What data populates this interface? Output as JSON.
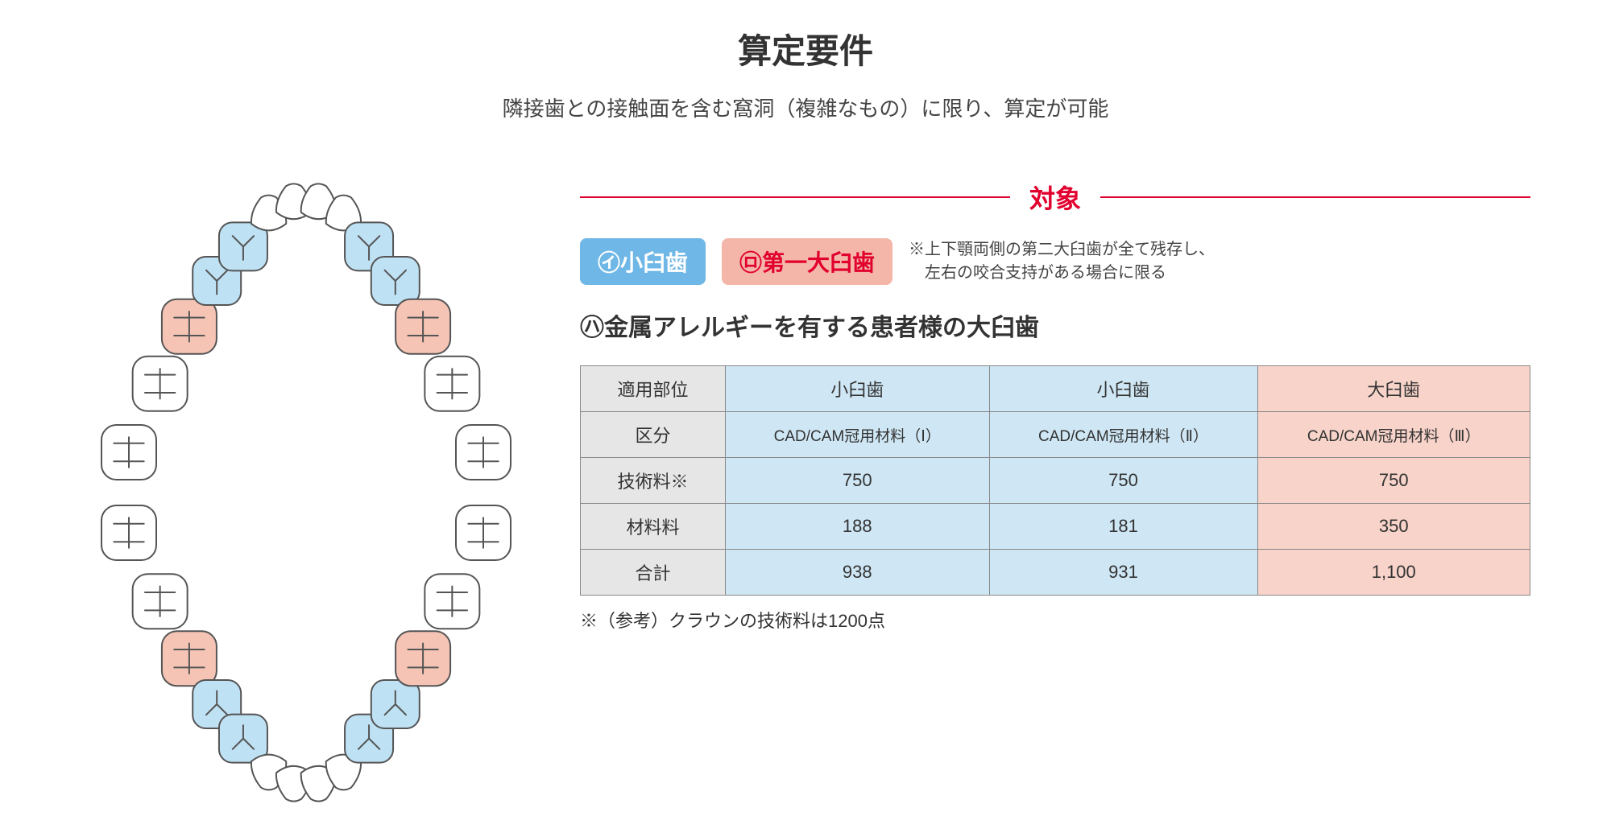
{
  "title": "算定要件",
  "subtitle": "隣接歯との接触面を含む窩洞（複雑なもの）に限り、算定が可能",
  "target": {
    "label": "対象",
    "line_color": "#e2002e",
    "badges": [
      {
        "text": "㋑小臼歯",
        "bg": "#6fb7e6",
        "fg": "#ffffff"
      },
      {
        "text": "㋺第一大臼歯",
        "bg": "#f3b6a8",
        "fg": "#e2002e"
      }
    ],
    "badge_note": "※上下顎両側の第二大臼歯が全て残存し、\n　左右の咬合支持がある場合に限る",
    "allergy": "㋩金属アレルギーを有する患者様の大臼歯"
  },
  "table": {
    "row_headers": [
      "適用部位",
      "区分",
      "技術料※",
      "材料料",
      "合計"
    ],
    "columns": [
      {
        "site": "小臼歯",
        "category": "CAD/CAM冠用材料（Ⅰ）",
        "tech": "750",
        "material": "188",
        "total": "938",
        "color": "blue"
      },
      {
        "site": "小臼歯",
        "category": "CAD/CAM冠用材料（Ⅱ）",
        "tech": "750",
        "material": "181",
        "total": "931",
        "color": "blue"
      },
      {
        "site": "大臼歯",
        "category": "CAD/CAM冠用材料（Ⅲ）",
        "tech": "750",
        "material": "350",
        "total": "1,100",
        "color": "pink"
      }
    ],
    "footnote": "※（参考）クラウンの技術料は1200点",
    "colors": {
      "blue": "#cfe7f5",
      "pink": "#f7d3c9",
      "header_bg": "#e6e6e6",
      "border": "#888888"
    }
  },
  "diagram": {
    "stroke": "#555555",
    "stroke_width": 2,
    "fill_white": "#ffffff",
    "fill_blue": "#bfe1f4",
    "fill_pink": "#f5c4b5",
    "note": "Upper & lower dental arches. Premolars (4,5) shaded blue; first molars (6) shaded pink; remainder white."
  }
}
